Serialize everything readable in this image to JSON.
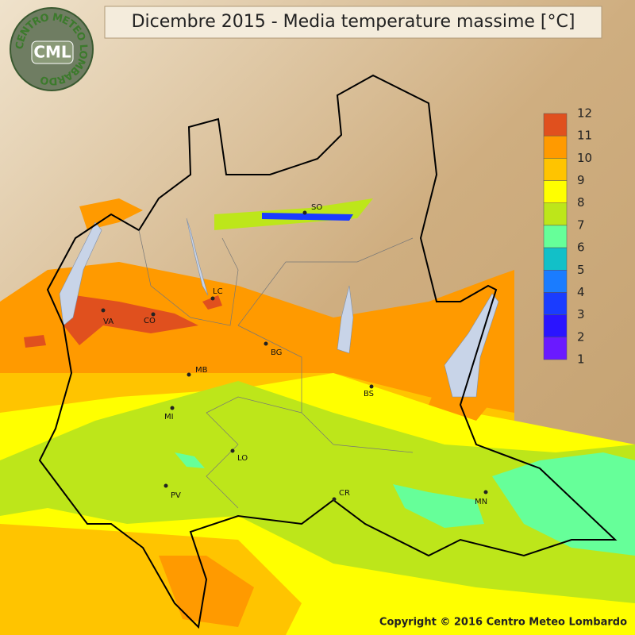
{
  "header": {
    "title": "Dicembre 2015 - Media temperature massime [°C]"
  },
  "logo": {
    "ring": "CENTRO METEO LOMBARDO",
    "initials": "CML"
  },
  "legend": {
    "labels": [
      12,
      11,
      10,
      9,
      8,
      7,
      6,
      5,
      4,
      3,
      2,
      1
    ],
    "colors": [
      "#e0501e",
      "#ff9a00",
      "#ffc400",
      "#ffff00",
      "#bde61a",
      "#66ff99",
      "#12c0c8",
      "#1a7cff",
      "#1a3cff",
      "#2a14ff",
      "#6a1aff"
    ]
  },
  "cities": [
    "SO",
    "LC",
    "VA",
    "CO",
    "BG",
    "MB",
    "BS",
    "MI",
    "LO",
    "PV",
    "CR",
    "MN"
  ],
  "footer": {
    "copyright": "Copyright © 2016 Centro Meteo Lombardo"
  }
}
